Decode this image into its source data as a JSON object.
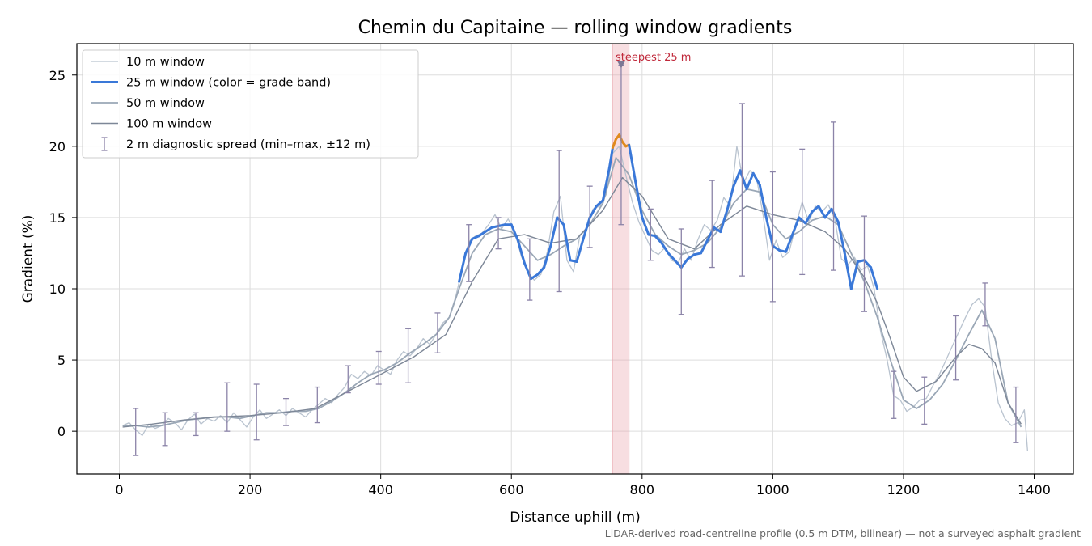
{
  "chart_data": {
    "type": "line",
    "title": "Chemin du Capitaine — rolling window gradients",
    "xlabel": "Distance uphill (m)",
    "ylabel": "Gradient (%)",
    "xlim": [
      -65,
      1460
    ],
    "ylim": [
      -3,
      27.2
    ],
    "xticks": [
      0,
      200,
      400,
      600,
      800,
      1000,
      1200,
      1400
    ],
    "yticks": [
      0,
      5,
      10,
      15,
      20,
      25
    ],
    "grid": true,
    "legend_position": "top-left",
    "footnote": "LiDAR-derived road-centreline profile (0.5 m DTM, bilinear) — not a surveyed asphalt gradient",
    "highlight": {
      "x_start": 755,
      "x_end": 780,
      "color": "#e8a0a8",
      "label": "steepest 25 m",
      "label_color": "#c0283a",
      "marker_x": 768,
      "marker_y": 25.7
    },
    "grade_bands": [
      {
        "min": 20,
        "color": "#e08a1e"
      },
      {
        "min": -100,
        "color": "#3a78d8"
      }
    ],
    "series": [
      {
        "name": "10 m window",
        "color": "#b9c3cf",
        "width": 1.3,
        "x": [
          5,
          15,
          25,
          35,
          45,
          55,
          65,
          75,
          85,
          95,
          105,
          115,
          125,
          135,
          145,
          155,
          165,
          175,
          185,
          195,
          205,
          215,
          225,
          235,
          245,
          255,
          265,
          275,
          285,
          295,
          305,
          315,
          325,
          335,
          345,
          355,
          365,
          375,
          385,
          395,
          405,
          415,
          425,
          435,
          445,
          455,
          465,
          475,
          485,
          495,
          505,
          515,
          525,
          535,
          545,
          555,
          565,
          575,
          585,
          595,
          605,
          615,
          625,
          635,
          645,
          655,
          665,
          675,
          685,
          695,
          705,
          715,
          725,
          735,
          745,
          755,
          765,
          775,
          785,
          795,
          805,
          815,
          825,
          835,
          845,
          855,
          865,
          875,
          885,
          895,
          905,
          915,
          925,
          935,
          945,
          955,
          965,
          975,
          985,
          995,
          1005,
          1015,
          1025,
          1035,
          1045,
          1055,
          1065,
          1075,
          1085,
          1095,
          1105,
          1115,
          1125,
          1135,
          1145,
          1155,
          1165,
          1175,
          1185,
          1195,
          1205,
          1215,
          1225,
          1235,
          1245,
          1255,
          1265,
          1275,
          1285,
          1295,
          1305,
          1315,
          1325,
          1335,
          1345,
          1355,
          1365,
          1375,
          1385,
          1390
        ],
        "y": [
          0.4,
          0.6,
          0.1,
          -0.3,
          0.5,
          0.2,
          0.4,
          0.9,
          0.6,
          0.1,
          0.8,
          1.2,
          0.5,
          0.9,
          0.7,
          1.1,
          0.6,
          1.3,
          0.8,
          0.3,
          1.0,
          1.5,
          0.9,
          1.2,
          1.5,
          1.1,
          1.6,
          1.3,
          1.0,
          1.5,
          1.9,
          2.3,
          2.0,
          2.6,
          3.1,
          4.0,
          3.7,
          4.2,
          3.9,
          4.6,
          4.3,
          4.0,
          5.0,
          5.6,
          5.3,
          5.8,
          6.5,
          6.1,
          6.8,
          7.6,
          8.0,
          9.5,
          11.4,
          13.3,
          13.7,
          13.9,
          14.5,
          15.2,
          14.2,
          14.9,
          14.0,
          12.3,
          11.2,
          10.6,
          11.0,
          12.6,
          15.4,
          16.5,
          12.0,
          11.2,
          13.8,
          14.1,
          15.6,
          15.8,
          16.6,
          19.5,
          20.0,
          18.0,
          16.1,
          14.7,
          13.7,
          12.7,
          12.4,
          12.9,
          12.0,
          11.8,
          12.8,
          12.0,
          13.4,
          14.5,
          14.1,
          14.8,
          16.4,
          15.8,
          20.0,
          17.4,
          18.3,
          17.8,
          15.2,
          12.0,
          13.4,
          12.2,
          12.6,
          14.4,
          16.1,
          14.7,
          15.8,
          15.4,
          15.9,
          14.9,
          12.1,
          11.7,
          12.2,
          11.3,
          11.6,
          10.0,
          7.0,
          5.0,
          2.5,
          2.2,
          1.4,
          1.7,
          2.2,
          2.3,
          3.2,
          4.0,
          5.0,
          6.0,
          7.0,
          8.0,
          8.9,
          9.3,
          8.7,
          5.0,
          2.0,
          0.9,
          0.4,
          0.6,
          1.5,
          -1.4
        ]
      },
      {
        "name": "25 m window (color = grade band)",
        "color": "#3a78d8",
        "width": 3.0,
        "x": [
          520,
          530,
          540,
          550,
          560,
          570,
          580,
          590,
          600,
          610,
          620,
          630,
          640,
          650,
          660,
          670,
          680,
          690,
          700,
          710,
          720,
          730,
          740,
          750,
          755,
          760,
          765,
          770,
          775,
          780,
          790,
          800,
          810,
          820,
          830,
          840,
          850,
          860,
          870,
          880,
          890,
          900,
          910,
          920,
          930,
          940,
          950,
          960,
          970,
          980,
          990,
          1000,
          1010,
          1020,
          1030,
          1040,
          1050,
          1060,
          1070,
          1080,
          1090,
          1100,
          1110,
          1120,
          1130,
          1140,
          1150,
          1160
        ],
        "y": [
          10.5,
          12.5,
          13.5,
          13.7,
          14.0,
          14.3,
          14.4,
          14.5,
          14.5,
          13.4,
          11.8,
          10.7,
          11.0,
          11.5,
          13.0,
          15.0,
          14.5,
          12.0,
          11.9,
          13.5,
          15.0,
          15.8,
          16.2,
          18.5,
          19.9,
          20.5,
          20.8,
          20.3,
          20.0,
          20.1,
          17.5,
          15.0,
          13.8,
          13.7,
          13.2,
          12.5,
          12.0,
          11.5,
          12.1,
          12.4,
          12.5,
          13.4,
          14.3,
          14.0,
          15.5,
          17.2,
          18.3,
          17.0,
          18.1,
          17.3,
          15.0,
          13.0,
          12.7,
          12.6,
          13.8,
          15.0,
          14.6,
          15.4,
          15.8,
          15.0,
          15.6,
          14.7,
          12.5,
          10.0,
          11.9,
          12.0,
          11.5,
          10.0
        ]
      },
      {
        "name": "50 m window",
        "color": "#9aa7b6",
        "width": 1.8,
        "x": [
          5,
          25,
          45,
          65,
          85,
          105,
          125,
          145,
          165,
          185,
          205,
          225,
          245,
          265,
          285,
          305,
          325,
          345,
          365,
          385,
          405,
          425,
          445,
          465,
          485,
          505,
          520,
          540,
          560,
          580,
          600,
          620,
          640,
          660,
          680,
          700,
          720,
          740,
          760,
          780,
          800,
          820,
          840,
          860,
          880,
          900,
          920,
          940,
          960,
          980,
          1000,
          1020,
          1040,
          1060,
          1080,
          1100,
          1120,
          1140,
          1160,
          1180,
          1200,
          1220,
          1240,
          1260,
          1280,
          1300,
          1320,
          1340,
          1360,
          1380
        ],
        "y": [
          0.4,
          0.4,
          0.3,
          0.4,
          0.6,
          0.8,
          0.9,
          1.0,
          1.0,
          0.9,
          1.1,
          1.3,
          1.3,
          1.4,
          1.4,
          1.6,
          2.1,
          2.7,
          3.4,
          4.0,
          4.3,
          4.8,
          5.5,
          6.1,
          6.8,
          8.0,
          10.0,
          12.5,
          13.8,
          14.2,
          14.0,
          13.0,
          12.0,
          12.4,
          13.0,
          13.5,
          14.5,
          16.0,
          19.2,
          18.0,
          15.5,
          13.8,
          13.0,
          12.4,
          12.7,
          13.2,
          14.3,
          16.0,
          17.0,
          16.8,
          14.5,
          13.5,
          14.0,
          14.8,
          15.1,
          14.5,
          12.5,
          10.5,
          8.0,
          5.0,
          2.2,
          1.6,
          2.2,
          3.3,
          5.0,
          6.8,
          8.5,
          6.5,
          2.0,
          0.3
        ]
      },
      {
        "name": "100 m window",
        "color": "#7d8797",
        "width": 1.4,
        "x": [
          5,
          50,
          100,
          150,
          200,
          250,
          300,
          350,
          400,
          450,
          500,
          540,
          580,
          620,
          660,
          700,
          740,
          770,
          800,
          840,
          880,
          920,
          960,
          1000,
          1040,
          1080,
          1110,
          1140,
          1160,
          1180,
          1200,
          1220,
          1250,
          1280,
          1300,
          1320,
          1340,
          1360,
          1380
        ],
        "y": [
          0.3,
          0.5,
          0.8,
          1.0,
          1.1,
          1.3,
          1.6,
          2.8,
          4.0,
          5.2,
          6.8,
          10.5,
          13.5,
          13.8,
          13.2,
          13.5,
          15.5,
          17.8,
          16.5,
          13.5,
          12.8,
          14.5,
          15.8,
          15.2,
          14.8,
          14.0,
          12.8,
          10.8,
          9.0,
          6.5,
          3.8,
          2.8,
          3.5,
          5.2,
          6.1,
          5.8,
          4.8,
          2.0,
          0.5
        ]
      }
    ],
    "diagnostic": {
      "name": "2 m diagnostic spread (min–max, ±12 m)",
      "color": "#8b83a8",
      "points": [
        {
          "x": 25,
          "min": -1.7,
          "max": 1.6
        },
        {
          "x": 70,
          "min": -1.0,
          "max": 1.3
        },
        {
          "x": 117,
          "min": -0.3,
          "max": 1.3
        },
        {
          "x": 165,
          "min": 0.0,
          "max": 3.4
        },
        {
          "x": 210,
          "min": -0.6,
          "max": 3.3
        },
        {
          "x": 255,
          "min": 0.4,
          "max": 2.3
        },
        {
          "x": 303,
          "min": 0.6,
          "max": 3.1
        },
        {
          "x": 350,
          "min": 2.7,
          "max": 4.6
        },
        {
          "x": 397,
          "min": 3.3,
          "max": 5.6
        },
        {
          "x": 442,
          "min": 3.4,
          "max": 7.2
        },
        {
          "x": 487,
          "min": 5.5,
          "max": 8.3
        },
        {
          "x": 535,
          "min": 10.5,
          "max": 14.5
        },
        {
          "x": 580,
          "min": 12.8,
          "max": 15.0
        },
        {
          "x": 628,
          "min": 9.2,
          "max": 13.5
        },
        {
          "x": 673,
          "min": 9.8,
          "max": 19.7
        },
        {
          "x": 720,
          "min": 12.9,
          "max": 17.2
        },
        {
          "x": 768,
          "min": 14.5,
          "max": 25.7
        },
        {
          "x": 813,
          "min": 12.0,
          "max": 15.6
        },
        {
          "x": 860,
          "min": 8.2,
          "max": 14.2
        },
        {
          "x": 907,
          "min": 11.5,
          "max": 17.6
        },
        {
          "x": 953,
          "min": 10.9,
          "max": 23.0
        },
        {
          "x": 1000,
          "min": 9.1,
          "max": 18.2
        },
        {
          "x": 1045,
          "min": 11.0,
          "max": 19.8
        },
        {
          "x": 1093,
          "min": 11.3,
          "max": 21.7
        },
        {
          "x": 1140,
          "min": 8.4,
          "max": 15.1
        },
        {
          "x": 1185,
          "min": 0.9,
          "max": 4.2
        },
        {
          "x": 1232,
          "min": 0.5,
          "max": 3.8
        },
        {
          "x": 1280,
          "min": 3.6,
          "max": 8.1
        },
        {
          "x": 1325,
          "min": 7.4,
          "max": 10.4
        },
        {
          "x": 1372,
          "min": -0.8,
          "max": 3.1
        }
      ]
    }
  }
}
